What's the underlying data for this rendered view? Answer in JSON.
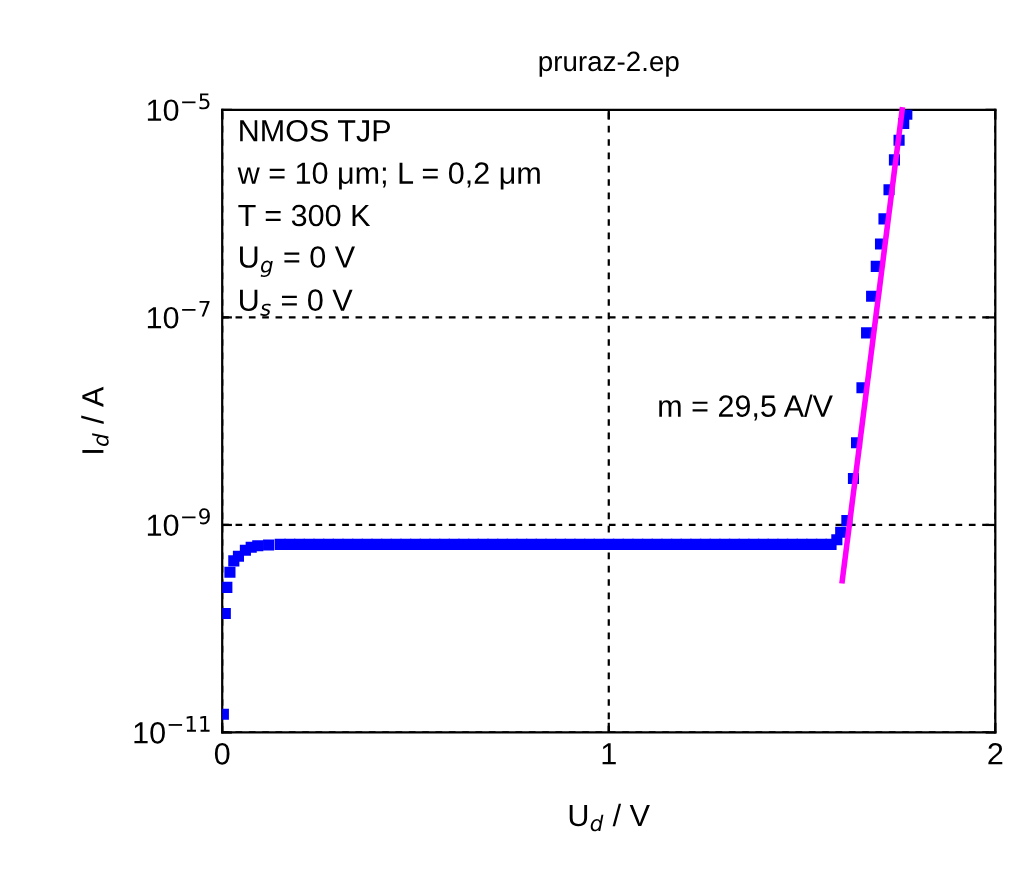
{
  "chart_data": {
    "type": "scatter",
    "title": "pruraz-2.ep",
    "xlabel": "U$_{d}$ / V",
    "ylabel": "I$_{d}$ / A",
    "log": "y",
    "xlim": [
      0,
      2
    ],
    "ylim": [
      1e-11,
      1e-05
    ],
    "xticks": [
      0,
      1,
      2
    ],
    "yticks": [
      {
        "value": 1e-11,
        "label": "10$^{−11}$"
      },
      {
        "value": 1e-09,
        "label": "10$^{−9}$"
      },
      {
        "value": 1e-07,
        "label": "10$^{−7}$"
      },
      {
        "value": 1e-05,
        "label": "10$^{−5}$"
      }
    ],
    "grid": true,
    "annotations": [
      "NMOS TJP",
      "w = 10 μm; L = 0,2 μm",
      "T = 300 K",
      "U$_{g}$ = 0 V",
      "U$_{s}$ = 0 V",
      "m = 29,5 A/V"
    ],
    "series": [
      {
        "color": "#0000ff",
        "marker": "square",
        "x": [
          0.003,
          0.008,
          0.012,
          0.02,
          0.03,
          0.042,
          0.06,
          0.075,
          0.092,
          0.12,
          0.15,
          0.175,
          0.2,
          0.225,
          0.25,
          0.275,
          0.3,
          0.325,
          0.35,
          0.375,
          0.4,
          0.425,
          0.45,
          0.475,
          0.5,
          0.525,
          0.55,
          0.575,
          0.6,
          0.625,
          0.65,
          0.675,
          0.7,
          0.725,
          0.75,
          0.775,
          0.8,
          0.825,
          0.85,
          0.875,
          0.9,
          0.925,
          0.95,
          0.975,
          1.0,
          1.025,
          1.05,
          1.075,
          1.1,
          1.125,
          1.15,
          1.175,
          1.2,
          1.225,
          1.25,
          1.275,
          1.3,
          1.325,
          1.35,
          1.375,
          1.4,
          1.425,
          1.45,
          1.475,
          1.5,
          1.525,
          1.55,
          1.575,
          1.59,
          1.6,
          1.616,
          1.633,
          1.641,
          1.655,
          1.667,
          1.68,
          1.692,
          1.703,
          1.712,
          1.725,
          1.739,
          1.751,
          1.763,
          1.771
        ],
        "values": [
          1.5e-11,
          1.4e-10,
          2.5e-10,
          3.5e-10,
          4.5e-10,
          5e-10,
          5.7e-10,
          6.1e-10,
          6.3e-10,
          6.4e-10,
          6.5e-10,
          6.5e-10,
          6.5e-10,
          6.5e-10,
          6.5e-10,
          6.5e-10,
          6.5e-10,
          6.5e-10,
          6.5e-10,
          6.5e-10,
          6.5e-10,
          6.5e-10,
          6.5e-10,
          6.5e-10,
          6.5e-10,
          6.5e-10,
          6.5e-10,
          6.5e-10,
          6.5e-10,
          6.5e-10,
          6.5e-10,
          6.5e-10,
          6.5e-10,
          6.5e-10,
          6.5e-10,
          6.5e-10,
          6.5e-10,
          6.5e-10,
          6.5e-10,
          6.5e-10,
          6.5e-10,
          6.5e-10,
          6.5e-10,
          6.5e-10,
          6.5e-10,
          6.5e-10,
          6.5e-10,
          6.5e-10,
          6.5e-10,
          6.5e-10,
          6.5e-10,
          6.5e-10,
          6.5e-10,
          6.5e-10,
          6.5e-10,
          6.5e-10,
          6.5e-10,
          6.5e-10,
          6.5e-10,
          6.5e-10,
          6.5e-10,
          6.5e-10,
          6.5e-10,
          6.5e-10,
          6.5e-10,
          6.5e-10,
          6.5e-10,
          6.5e-10,
          7.2e-10,
          8.5e-10,
          1.1e-09,
          2.8e-09,
          6.2e-09,
          2.1e-08,
          7.1e-08,
          1.6e-07,
          3.1e-07,
          5.1e-07,
          8.9e-07,
          1.7e-06,
          3.3e-06,
          5.1e-06,
          7.4e-06,
          9.1e-06
        ]
      },
      {
        "type": "line",
        "color": "#ff00ff",
        "marker": "none",
        "line_style": "solid",
        "x": [
          1.604,
          1.759
        ],
        "values": [
          2.9e-10,
          1e-05
        ]
      }
    ]
  }
}
